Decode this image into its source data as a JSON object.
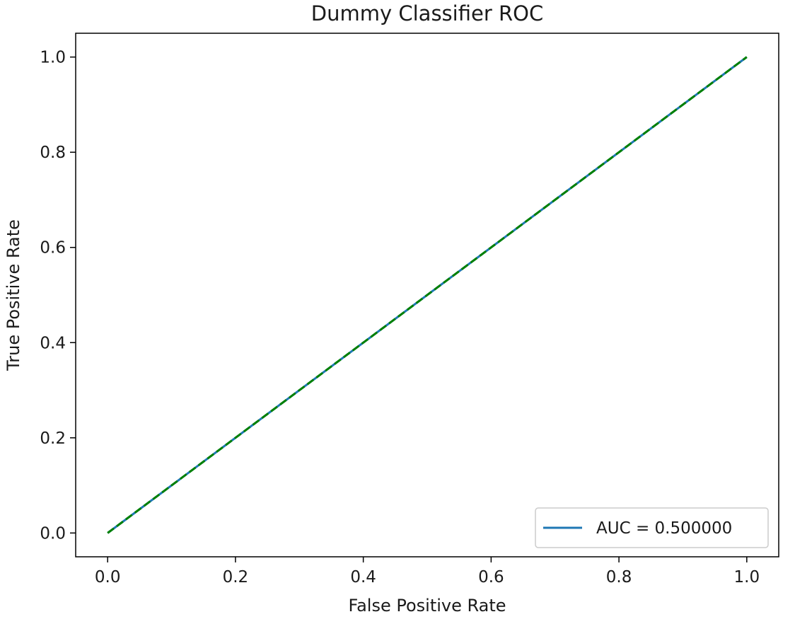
{
  "chart_data": {
    "type": "line",
    "title": "Dummy Classifier ROC",
    "xlabel": "False Positive Rate",
    "ylabel": "True Positive Rate",
    "xlim": [
      -0.05,
      1.05
    ],
    "ylim": [
      -0.05,
      1.05
    ],
    "xticks": [
      "0.0",
      "0.2",
      "0.4",
      "0.6",
      "0.8",
      "1.0"
    ],
    "yticks": [
      "0.0",
      "0.2",
      "0.4",
      "0.6",
      "0.8",
      "1.0"
    ],
    "grid": false,
    "legend_position": "lower-right",
    "series": [
      {
        "name": "AUC = 0.500000",
        "style": "solid",
        "color": "#1f77b4",
        "x": [
          0.0,
          1.0
        ],
        "y": [
          0.0,
          1.0
        ]
      },
      {
        "style": "dashed",
        "color": "#008000",
        "x": [
          0.0,
          1.0
        ],
        "y": [
          0.0,
          1.0
        ]
      }
    ]
  }
}
